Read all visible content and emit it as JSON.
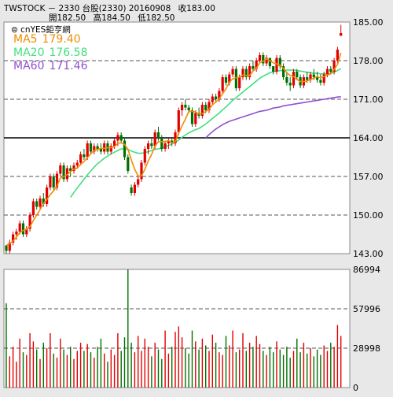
{
  "header": {
    "line1": [
      "TWSTOCK － 2330  台股(2330) 20160908",
      "收183.00"
    ],
    "line2": [
      "開182.50",
      "高184.50",
      "低182.50"
    ]
  },
  "watermark": "⊜ cnYES鉅亨網",
  "colors": {
    "background": "#e8e8e8",
    "up": "#e00000",
    "down": "#007000",
    "neutral": "#000000",
    "ma5": "#f08c00",
    "ma20": "#40e080",
    "ma60": "#9050d0",
    "grid": "#555555"
  },
  "chart_data": [
    {
      "type": "candlestick",
      "ylim": [
        143,
        185
      ],
      "yticks": [
        "185.00",
        "178.00",
        "171.00",
        "164.00",
        "157.00",
        "150.00",
        "143.00"
      ],
      "legend": [
        {
          "name": "MA5",
          "value": "179.40"
        },
        {
          "name": "MA20",
          "value": "176.58"
        },
        {
          "name": "MA60",
          "value": "171.46"
        }
      ],
      "ohlc": [
        [
          144.5,
          144.5,
          143.0,
          143.5
        ],
        [
          143.5,
          145.5,
          143.0,
          145.0
        ],
        [
          145.0,
          147.0,
          144.5,
          146.5
        ],
        [
          146.5,
          147.5,
          145.5,
          147.0
        ],
        [
          147.0,
          149.0,
          146.5,
          148.5
        ],
        [
          148.5,
          149.0,
          146.0,
          146.5
        ],
        [
          146.5,
          148.0,
          146.0,
          147.5
        ],
        [
          147.5,
          150.5,
          147.0,
          150.0
        ],
        [
          150.0,
          153.0,
          149.5,
          152.5
        ],
        [
          152.5,
          153.0,
          151.0,
          151.5
        ],
        [
          151.5,
          153.5,
          151.0,
          153.0
        ],
        [
          153.0,
          154.0,
          151.5,
          152.0
        ],
        [
          152.0,
          155.5,
          151.5,
          155.0
        ],
        [
          155.0,
          157.5,
          154.5,
          157.0
        ],
        [
          157.0,
          157.5,
          154.5,
          155.0
        ],
        [
          155.0,
          158.0,
          154.5,
          157.5
        ],
        [
          157.5,
          159.5,
          157.0,
          159.0
        ],
        [
          159.0,
          159.5,
          156.0,
          156.5
        ],
        [
          156.5,
          159.0,
          156.0,
          158.5
        ],
        [
          158.5,
          159.0,
          157.0,
          158.0
        ],
        [
          158.0,
          159.5,
          157.5,
          159.0
        ],
        [
          159.0,
          160.0,
          158.5,
          159.5
        ],
        [
          159.5,
          161.5,
          159.0,
          161.0
        ],
        [
          161.0,
          162.0,
          160.0,
          160.5
        ],
        [
          160.5,
          163.5,
          160.0,
          163.0
        ],
        [
          163.0,
          163.5,
          161.0,
          161.5
        ],
        [
          161.5,
          163.0,
          161.0,
          162.5
        ],
        [
          162.5,
          163.0,
          161.5,
          162.0
        ],
        [
          162.0,
          163.0,
          161.0,
          161.5
        ],
        [
          161.5,
          163.5,
          161.0,
          163.0
        ],
        [
          163.0,
          163.5,
          161.0,
          161.5
        ],
        [
          161.5,
          163.0,
          161.0,
          162.5
        ],
        [
          162.5,
          164.0,
          162.0,
          163.5
        ],
        [
          163.5,
          165.0,
          162.5,
          164.5
        ],
        [
          164.5,
          165.0,
          163.0,
          163.5
        ],
        [
          163.5,
          164.0,
          160.0,
          160.5
        ],
        [
          160.5,
          161.0,
          157.5,
          158.0
        ],
        [
          155.0,
          155.5,
          153.5,
          154.0
        ],
        [
          154.0,
          156.0,
          153.5,
          155.5
        ],
        [
          155.5,
          157.0,
          155.0,
          156.5
        ],
        [
          156.5,
          160.0,
          156.0,
          159.5
        ],
        [
          159.5,
          162.5,
          159.0,
          162.0
        ],
        [
          162.0,
          163.5,
          161.0,
          163.0
        ],
        [
          163.0,
          164.0,
          162.0,
          162.5
        ],
        [
          162.5,
          165.5,
          162.0,
          165.0
        ],
        [
          165.0,
          166.0,
          163.5,
          164.0
        ],
        [
          164.0,
          164.5,
          161.5,
          162.0
        ],
        [
          162.0,
          163.5,
          161.5,
          163.0
        ],
        [
          163.0,
          164.0,
          162.0,
          163.5
        ],
        [
          163.5,
          164.0,
          162.5,
          163.0
        ],
        [
          163.0,
          165.5,
          162.5,
          165.0
        ],
        [
          165.0,
          169.5,
          164.5,
          169.0
        ],
        [
          169.0,
          170.5,
          168.0,
          170.0
        ],
        [
          170.0,
          171.0,
          169.0,
          169.5
        ],
        [
          169.5,
          170.0,
          168.5,
          169.0
        ],
        [
          169.0,
          169.5,
          166.0,
          166.5
        ],
        [
          166.5,
          169.0,
          166.0,
          168.5
        ],
        [
          168.5,
          169.5,
          167.5,
          168.0
        ],
        [
          168.0,
          170.5,
          167.5,
          170.0
        ],
        [
          170.0,
          170.5,
          168.5,
          169.0
        ],
        [
          169.0,
          171.0,
          168.5,
          170.5
        ],
        [
          170.5,
          172.0,
          170.0,
          171.5
        ],
        [
          171.5,
          172.0,
          170.5,
          171.0
        ],
        [
          171.0,
          173.0,
          170.5,
          172.5
        ],
        [
          172.5,
          175.5,
          172.0,
          175.0
        ],
        [
          175.0,
          175.5,
          173.5,
          174.0
        ],
        [
          174.0,
          176.0,
          173.5,
          175.5
        ],
        [
          175.5,
          177.0,
          175.0,
          176.5
        ],
        [
          176.5,
          177.0,
          172.5,
          173.0
        ],
        [
          173.0,
          175.5,
          172.5,
          175.0
        ],
        [
          175.0,
          177.0,
          174.5,
          176.5
        ],
        [
          176.5,
          177.0,
          174.5,
          175.0
        ],
        [
          175.0,
          177.5,
          174.5,
          177.0
        ],
        [
          177.0,
          178.0,
          176.0,
          176.5
        ],
        [
          176.5,
          178.5,
          176.0,
          178.0
        ],
        [
          178.0,
          179.5,
          177.5,
          179.0
        ],
        [
          179.0,
          179.5,
          177.0,
          177.5
        ],
        [
          177.5,
          179.0,
          177.0,
          178.5
        ],
        [
          178.5,
          178.5,
          176.5,
          177.0
        ],
        [
          177.0,
          177.0,
          175.5,
          176.0
        ],
        [
          176.0,
          179.0,
          175.5,
          178.5
        ],
        [
          178.5,
          179.0,
          176.5,
          177.0
        ],
        [
          177.0,
          177.5,
          174.5,
          175.0
        ],
        [
          175.0,
          176.0,
          173.5,
          174.0
        ],
        [
          174.0,
          175.0,
          172.5,
          173.5
        ],
        [
          173.5,
          176.5,
          173.0,
          176.0
        ],
        [
          176.0,
          176.5,
          174.5,
          175.0
        ],
        [
          175.0,
          175.5,
          173.0,
          173.5
        ],
        [
          173.5,
          175.5,
          173.0,
          175.0
        ],
        [
          175.0,
          176.0,
          174.0,
          174.5
        ],
        [
          174.5,
          176.0,
          174.0,
          175.5
        ],
        [
          175.5,
          176.5,
          174.5,
          175.0
        ],
        [
          175.0,
          176.0,
          174.0,
          174.5
        ],
        [
          174.5,
          175.5,
          173.5,
          174.0
        ],
        [
          174.0,
          176.0,
          173.5,
          175.5
        ],
        [
          175.5,
          177.0,
          175.0,
          176.5
        ],
        [
          176.5,
          177.0,
          175.5,
          176.0
        ],
        [
          176.0,
          178.5,
          175.5,
          178.0
        ],
        [
          178.0,
          180.5,
          177.5,
          180.0
        ],
        [
          182.5,
          184.5,
          182.5,
          183.0
        ]
      ],
      "ma5": [
        144.5,
        144.8,
        145.3,
        146.0,
        146.8,
        147.2,
        147.4,
        147.9,
        149.0,
        150.0,
        151.0,
        152.1,
        152.8,
        153.7,
        154.4,
        155.3,
        156.7,
        157.0,
        157.3,
        157.9,
        158.3,
        158.5,
        159.2,
        159.7,
        160.4,
        161.1,
        161.7,
        161.9,
        162.1,
        162.1,
        162.2,
        162.2,
        162.4,
        163.0,
        163.1,
        162.8,
        161.9,
        160.0,
        158.3,
        157.1,
        157.1,
        158.3,
        159.8,
        161.0,
        162.5,
        163.3,
        163.3,
        163.3,
        163.5,
        163.1,
        163.3,
        164.8,
        166.2,
        167.4,
        168.8,
        168.8,
        168.7,
        168.3,
        168.4,
        168.8,
        169.2,
        170.0,
        170.5,
        171.1,
        172.0,
        172.9,
        174.1,
        174.7,
        174.9,
        175.0,
        175.4,
        175.3,
        175.3,
        176.1,
        176.6,
        177.6,
        177.9,
        178.3,
        178.0,
        177.6,
        177.4,
        177.2,
        176.6,
        175.8,
        175.3,
        175.1,
        174.6,
        174.2,
        174.2,
        174.3,
        174.6,
        174.8,
        175.1,
        174.9,
        175.1,
        175.4,
        175.6,
        176.4,
        177.3,
        179.4
      ],
      "ma20": [
        null,
        null,
        null,
        null,
        null,
        null,
        null,
        null,
        null,
        null,
        null,
        null,
        null,
        null,
        null,
        null,
        null,
        null,
        null,
        153.2,
        154.1,
        154.9,
        155.7,
        156.5,
        157.3,
        158.0,
        158.7,
        159.3,
        159.8,
        160.3,
        160.7,
        161.1,
        161.4,
        161.7,
        162.0,
        162.0,
        161.9,
        161.6,
        161.4,
        161.2,
        161.2,
        161.3,
        161.5,
        161.7,
        161.9,
        162.0,
        162.1,
        162.4,
        162.6,
        162.9,
        163.2,
        163.6,
        164.1,
        164.5,
        164.9,
        165.2,
        165.5,
        165.7,
        166.1,
        166.5,
        167.0,
        167.5,
        168.0,
        168.5,
        169.1,
        169.6,
        170.2,
        170.8,
        171.3,
        171.8,
        172.3,
        172.8,
        173.3,
        173.8,
        174.3,
        174.8,
        175.2,
        175.5,
        175.8,
        176.0,
        176.1,
        176.2,
        176.2,
        176.3,
        176.3,
        176.3,
        176.2,
        176.1,
        176.0,
        175.9,
        175.8,
        175.7,
        175.7,
        175.6,
        175.6,
        175.6,
        175.7,
        175.9,
        176.2,
        176.58
      ],
      "ma60": [
        null,
        null,
        null,
        null,
        null,
        null,
        null,
        null,
        null,
        null,
        null,
        null,
        null,
        null,
        null,
        null,
        null,
        null,
        null,
        null,
        null,
        null,
        null,
        null,
        null,
        null,
        null,
        null,
        null,
        null,
        null,
        null,
        null,
        null,
        null,
        null,
        null,
        null,
        null,
        null,
        null,
        null,
        null,
        null,
        null,
        null,
        null,
        null,
        null,
        null,
        null,
        null,
        null,
        null,
        null,
        null,
        null,
        null,
        null,
        164.0,
        164.6,
        165.1,
        165.6,
        166.0,
        166.4,
        166.7,
        167.0,
        167.2,
        167.4,
        167.6,
        167.8,
        168.0,
        168.2,
        168.4,
        168.6,
        168.8,
        168.9,
        169.0,
        169.2,
        169.4,
        169.5,
        169.6,
        169.8,
        169.9,
        170.0,
        170.1,
        170.2,
        170.3,
        170.4,
        170.5,
        170.6,
        170.7,
        170.8,
        170.9,
        171.0,
        171.1,
        171.2,
        171.3,
        171.4,
        171.46
      ]
    },
    {
      "type": "bar",
      "ylim": [
        0,
        86994
      ],
      "yticks": [
        "86994",
        "57996",
        "28998",
        "0"
      ],
      "volume": [
        62000,
        23000,
        30000,
        19000,
        36000,
        26000,
        24000,
        40000,
        34000,
        28000,
        21000,
        33000,
        29000,
        40000,
        25000,
        22000,
        36000,
        28000,
        24000,
        30000,
        21000,
        27000,
        33000,
        27000,
        32000,
        26000,
        22000,
        30000,
        36000,
        25000,
        19000,
        28000,
        24000,
        40000,
        27000,
        37000,
        86994,
        33000,
        26000,
        38000,
        27000,
        36000,
        30000,
        23000,
        33000,
        28000,
        21000,
        42000,
        25000,
        30000,
        41000,
        45000,
        37000,
        29000,
        25000,
        42000,
        34000,
        28000,
        36000,
        31000,
        27000,
        39000,
        33000,
        26000,
        24000,
        38000,
        31000,
        42000,
        26000,
        28000,
        40000,
        27000,
        33000,
        30000,
        38000,
        32000,
        27000,
        24000,
        30000,
        26000,
        34000,
        28000,
        24000,
        30000,
        22000,
        27000,
        36000,
        26000,
        33000,
        25000,
        29000,
        23000,
        28000,
        24000,
        31000,
        27000,
        33000,
        30000,
        46000,
        38000
      ]
    }
  ]
}
